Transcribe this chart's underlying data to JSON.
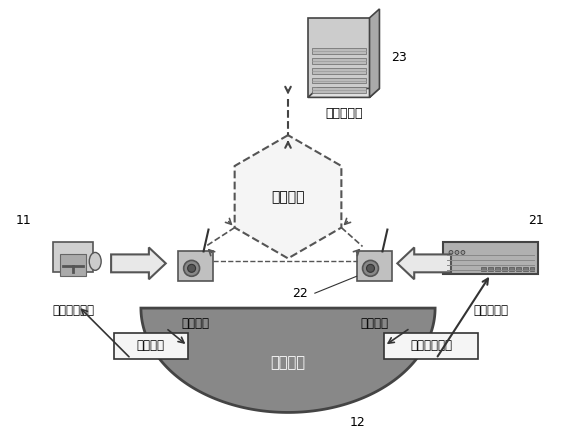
{
  "bg_color": "#ffffff",
  "server_label": "终端服务器",
  "server_num": "23",
  "network_label": "通讯网络",
  "left_device_label": "数据录入系统",
  "left_device_num": "11",
  "comm_device_label": "通讯设备",
  "comm_num": "22",
  "right_device_label": "数据控制器",
  "right_device_num": "21",
  "water_label": "水源水体",
  "water_num": "12",
  "monitor_label": "常规监测",
  "online_monitor_label": "在线监测设备",
  "text_color": "#000000",
  "water_color": "#888888"
}
